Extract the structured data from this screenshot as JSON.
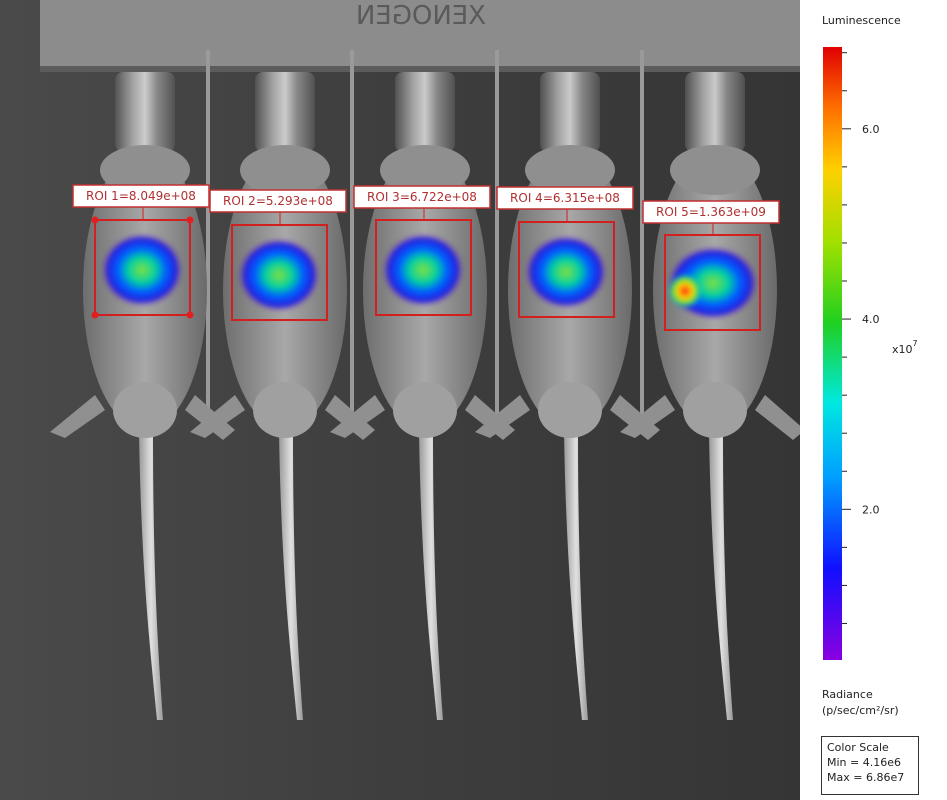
{
  "plate_label": "XENOGEN",
  "rois": [
    {
      "label": "ROI 1=8.049e+08"
    },
    {
      "label": "ROI 2=5.293e+08"
    },
    {
      "label": "ROI 3=6.722e+08"
    },
    {
      "label": "ROI 4=6.315e+08"
    },
    {
      "label": "ROI 5=1.363e+09"
    }
  ],
  "color_bar": {
    "title": "Luminescence",
    "range": [
      0.416,
      6.86
    ],
    "ticks": [
      {
        "value": 2,
        "label": "2.0"
      },
      {
        "value": 4,
        "label": "4.0"
      },
      {
        "value": 6,
        "label": "6.0"
      }
    ],
    "minor_ticks": [
      0.8,
      1.2,
      1.6,
      2.4,
      2.8,
      3.2,
      3.6,
      4.4,
      4.8,
      5.2,
      5.6,
      6.4,
      6.8
    ],
    "multiplier": "x10",
    "exponent": "7",
    "unit_title": "Radiance",
    "unit": "(p/sec/cm²/sr)"
  },
  "color_scale": {
    "title": "Color Scale",
    "min": "Min = 4.16e6",
    "max": "Max = 6.86e7"
  }
}
